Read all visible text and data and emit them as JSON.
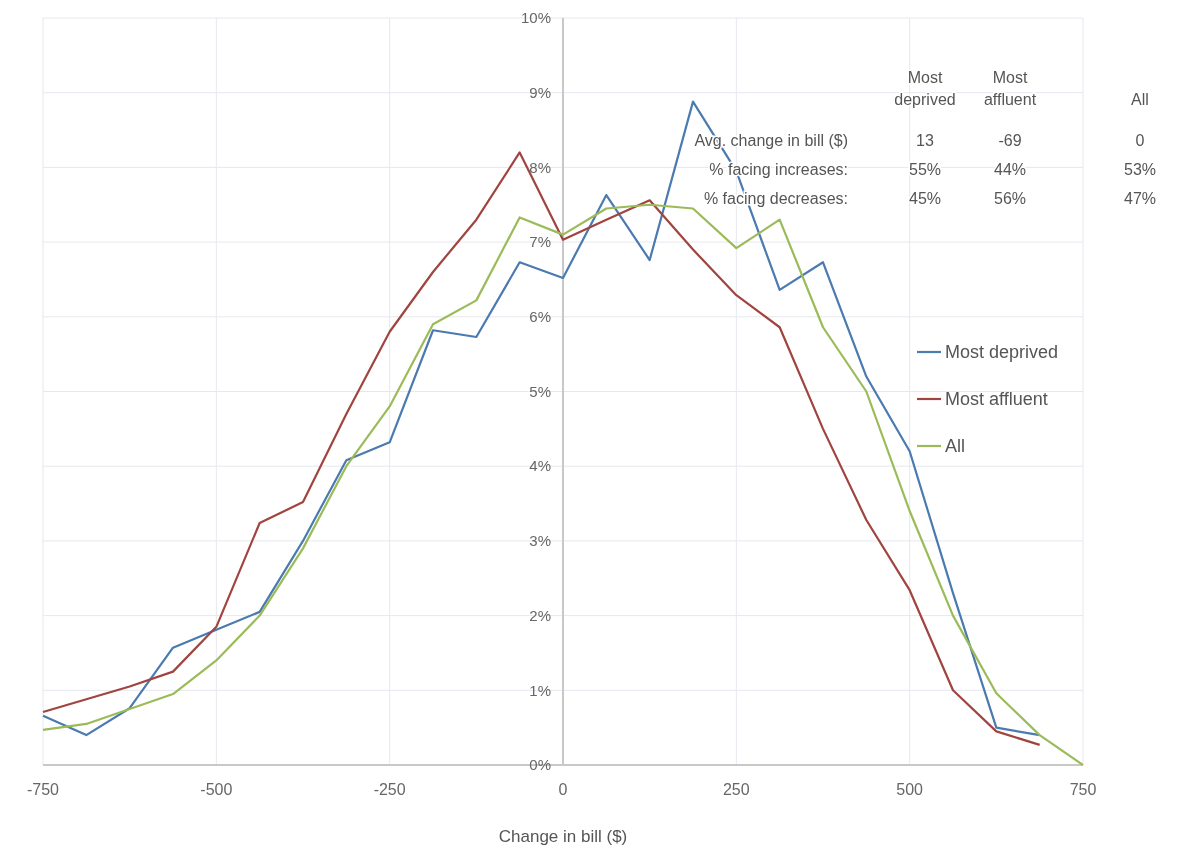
{
  "chart_data": {
    "type": "line",
    "xlabel": "Change in bill ($)",
    "x": [
      -750,
      -687.5,
      -625,
      -562.5,
      -500,
      -437.5,
      -375,
      -312.5,
      -250,
      -187.5,
      -125,
      -62.5,
      0,
      62.5,
      125,
      187.5,
      250,
      312.5,
      375,
      437.5,
      500,
      562.5,
      625,
      687.5,
      750
    ],
    "series": [
      {
        "name": "Most deprived",
        "color": "#4a7ab0",
        "values": [
          0.66,
          0.4,
          0.76,
          1.57,
          1.81,
          2.05,
          3.0,
          4.08,
          4.32,
          5.82,
          5.73,
          6.73,
          6.52,
          7.63,
          6.76,
          8.88,
          7.95,
          6.36,
          6.73,
          5.2,
          4.2,
          2.3,
          0.5,
          0.4,
          null
        ]
      },
      {
        "name": "Most affluent",
        "color": "#a0443f",
        "values": [
          0.71,
          0.88,
          1.05,
          1.25,
          1.85,
          3.24,
          3.52,
          4.7,
          5.8,
          6.6,
          7.3,
          8.2,
          7.03,
          7.3,
          7.56,
          6.9,
          6.29,
          5.86,
          4.5,
          3.28,
          2.34,
          1.0,
          0.45,
          0.27,
          null
        ]
      },
      {
        "name": "All",
        "color": "#9bbb59",
        "values": [
          0.47,
          0.55,
          0.75,
          0.95,
          1.4,
          2.0,
          2.9,
          4.0,
          4.8,
          5.9,
          6.22,
          7.33,
          7.1,
          7.45,
          7.5,
          7.45,
          6.92,
          7.3,
          5.86,
          5.0,
          3.4,
          2.0,
          0.96,
          0.4,
          0
        ]
      }
    ],
    "xlim": [
      -750,
      750
    ],
    "xticks": [
      -750,
      -500,
      -250,
      0,
      250,
      500,
      750
    ],
    "ylim": [
      0,
      10
    ],
    "yticks": [
      {
        "value": 0,
        "label": "0%"
      },
      {
        "value": 1,
        "label": "1%"
      },
      {
        "value": 2,
        "label": "2%"
      },
      {
        "value": 3,
        "label": "3%"
      },
      {
        "value": 4,
        "label": "4%"
      },
      {
        "value": 5,
        "label": "5%"
      },
      {
        "value": 6,
        "label": "6%"
      },
      {
        "value": 7,
        "label": "7%"
      },
      {
        "value": 8,
        "label": "8%"
      },
      {
        "value": 9,
        "label": "9%"
      },
      {
        "value": 10,
        "label": "10%"
      }
    ],
    "grid": true,
    "legend": "right",
    "marker": "none",
    "line_style": "solid",
    "annotations": [
      "Most deprived",
      "Most affluent",
      "All",
      "Avg. change in bill ($)",
      "13",
      "-69",
      "0",
      "% facing increases:",
      "55%",
      "44%",
      "53%",
      "% facing decreases:",
      "45%",
      "56%",
      "47%"
    ]
  }
}
